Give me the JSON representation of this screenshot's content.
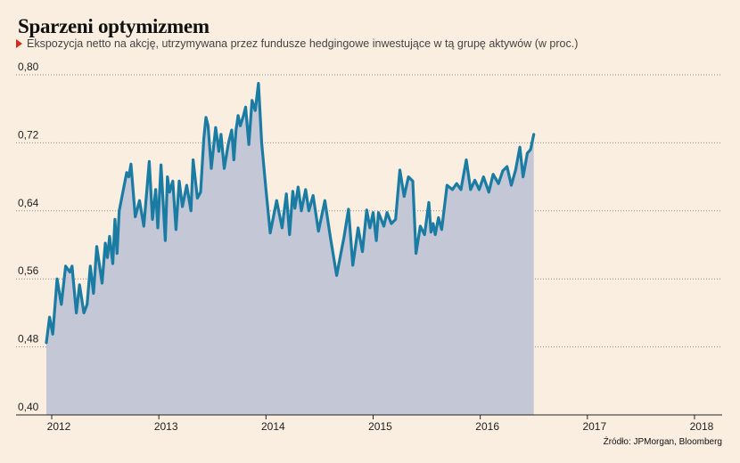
{
  "header": {
    "title": "Sparzeni optymizmem",
    "subtitle": "Ekspozycja netto na akcję, utrzymywana przez fundusze hedgingowe inwestujące w tą grupę aktywów (w proc.)"
  },
  "footer": {
    "source": "Źródło: JPMorgan, Bloomberg"
  },
  "colors": {
    "background": "#faeee1",
    "line": "#1a7ba3",
    "area": "#c3c7d6",
    "accent": "#d52b1e"
  },
  "chart_data": {
    "type": "area",
    "title": "Sparzeni optymizmem",
    "xlabel": "",
    "ylabel": "",
    "ylim": [
      0.4,
      0.8
    ],
    "xlim": [
      2011.95,
      2018.15
    ],
    "yticks": [
      0.4,
      0.48,
      0.56,
      0.64,
      0.72,
      0.8
    ],
    "ytick_labels": [
      "0,40",
      "0,48",
      "0,56",
      "0,64",
      "0,72",
      "0,80"
    ],
    "xticks": [
      2012,
      2013,
      2014,
      2015,
      2016,
      2017,
      2018
    ],
    "xtick_labels": [
      "2012",
      "2013",
      "2014",
      "2015",
      "2016",
      "2017",
      "2018"
    ],
    "grid": "horizontal-dotted",
    "series": [
      {
        "values": [
          [
            2011.95,
            0.485
          ],
          [
            2011.98,
            0.515
          ],
          [
            2012.01,
            0.495
          ],
          [
            2012.05,
            0.56
          ],
          [
            2012.09,
            0.53
          ],
          [
            2012.13,
            0.575
          ],
          [
            2012.17,
            0.568
          ],
          [
            2012.19,
            0.575
          ],
          [
            2012.23,
            0.52
          ],
          [
            2012.26,
            0.553
          ],
          [
            2012.3,
            0.52
          ],
          [
            2012.33,
            0.53
          ],
          [
            2012.36,
            0.575
          ],
          [
            2012.39,
            0.543
          ],
          [
            2012.42,
            0.598
          ],
          [
            2012.47,
            0.555
          ],
          [
            2012.5,
            0.602
          ],
          [
            2012.52,
            0.585
          ],
          [
            2012.54,
            0.61
          ],
          [
            2012.57,
            0.578
          ],
          [
            2012.59,
            0.63
          ],
          [
            2012.61,
            0.59
          ],
          [
            2012.63,
            0.64
          ],
          [
            2012.7,
            0.685
          ],
          [
            2012.72,
            0.68
          ],
          [
            2012.74,
            0.695
          ],
          [
            2012.78,
            0.633
          ],
          [
            2012.82,
            0.652
          ],
          [
            2012.86,
            0.622
          ],
          [
            2012.91,
            0.698
          ],
          [
            2012.94,
            0.63
          ],
          [
            2012.97,
            0.665
          ],
          [
            2012.99,
            0.62
          ],
          [
            2013.02,
            0.694
          ],
          [
            2013.06,
            0.605
          ],
          [
            2013.08,
            0.68
          ],
          [
            2013.1,
            0.662
          ],
          [
            2013.13,
            0.675
          ],
          [
            2013.16,
            0.618
          ],
          [
            2013.19,
            0.675
          ],
          [
            2013.22,
            0.645
          ],
          [
            2013.26,
            0.67
          ],
          [
            2013.3,
            0.64
          ],
          [
            2013.32,
            0.7
          ],
          [
            2013.36,
            0.655
          ],
          [
            2013.39,
            0.662
          ],
          [
            2013.42,
            0.725
          ],
          [
            2013.44,
            0.75
          ],
          [
            2013.46,
            0.74
          ],
          [
            2013.49,
            0.69
          ],
          [
            2013.53,
            0.738
          ],
          [
            2013.56,
            0.71
          ],
          [
            2013.58,
            0.73
          ],
          [
            2013.61,
            0.69
          ],
          [
            2013.65,
            0.72
          ],
          [
            2013.68,
            0.735
          ],
          [
            2013.7,
            0.7
          ],
          [
            2013.72,
            0.735
          ],
          [
            2013.74,
            0.752
          ],
          [
            2013.76,
            0.74
          ],
          [
            2013.79,
            0.752
          ],
          [
            2013.81,
            0.762
          ],
          [
            2013.84,
            0.718
          ],
          [
            2013.87,
            0.77
          ],
          [
            2013.9,
            0.758
          ],
          [
            2013.93,
            0.79
          ],
          [
            2013.96,
            0.72
          ],
          [
            2014.0,
            0.665
          ],
          [
            2014.04,
            0.614
          ],
          [
            2014.1,
            0.652
          ],
          [
            2014.15,
            0.62
          ],
          [
            2014.19,
            0.66
          ],
          [
            2014.22,
            0.612
          ],
          [
            2014.25,
            0.663
          ],
          [
            2014.27,
            0.643
          ],
          [
            2014.3,
            0.668
          ],
          [
            2014.33,
            0.64
          ],
          [
            2014.37,
            0.665
          ],
          [
            2014.4,
            0.64
          ],
          [
            2014.44,
            0.658
          ],
          [
            2014.49,
            0.616
          ],
          [
            2014.55,
            0.652
          ],
          [
            2014.6,
            0.61
          ],
          [
            2014.66,
            0.564
          ],
          [
            2014.73,
            0.61
          ],
          [
            2014.77,
            0.642
          ],
          [
            2014.81,
            0.576
          ],
          [
            2014.86,
            0.62
          ],
          [
            2014.9,
            0.592
          ],
          [
            2014.94,
            0.641
          ],
          [
            2014.97,
            0.62
          ],
          [
            2015.0,
            0.638
          ],
          [
            2015.03,
            0.605
          ],
          [
            2015.05,
            0.638
          ],
          [
            2015.1,
            0.622
          ],
          [
            2015.13,
            0.638
          ],
          [
            2015.17,
            0.625
          ],
          [
            2015.21,
            0.63
          ],
          [
            2015.25,
            0.688
          ],
          [
            2015.29,
            0.657
          ],
          [
            2015.33,
            0.68
          ],
          [
            2015.37,
            0.675
          ],
          [
            2015.4,
            0.59
          ],
          [
            2015.44,
            0.622
          ],
          [
            2015.48,
            0.612
          ],
          [
            2015.52,
            0.65
          ],
          [
            2015.54,
            0.615
          ],
          [
            2015.56,
            0.625
          ],
          [
            2015.58,
            0.612
          ],
          [
            2015.61,
            0.632
          ],
          [
            2015.64,
            0.618
          ],
          [
            2015.69,
            0.67
          ],
          [
            2015.74,
            0.665
          ],
          [
            2015.78,
            0.672
          ],
          [
            2015.82,
            0.665
          ],
          [
            2015.87,
            0.7
          ],
          [
            2015.91,
            0.665
          ],
          [
            2015.95,
            0.676
          ],
          [
            2015.99,
            0.665
          ],
          [
            2016.03,
            0.68
          ],
          [
            2016.08,
            0.662
          ],
          [
            2016.12,
            0.683
          ],
          [
            2016.17,
            0.672
          ],
          [
            2016.21,
            0.687
          ],
          [
            2016.25,
            0.692
          ],
          [
            2016.29,
            0.67
          ],
          [
            2016.33,
            0.688
          ],
          [
            2016.37,
            0.715
          ],
          [
            2016.4,
            0.68
          ],
          [
            2016.44,
            0.708
          ],
          [
            2016.47,
            0.712
          ],
          [
            2016.5,
            0.73
          ]
        ]
      }
    ]
  }
}
